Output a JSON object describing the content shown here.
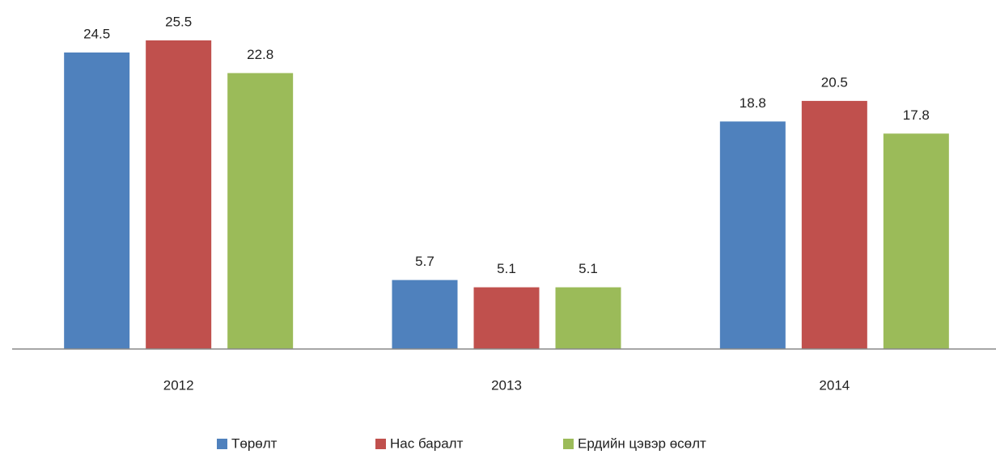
{
  "chart_data": {
    "type": "bar",
    "categories": [
      "2012",
      "2013",
      "2014"
    ],
    "series": [
      {
        "name": "Төрөлт",
        "color": "#4f81bd",
        "values": [
          24.5,
          5.7,
          18.8
        ]
      },
      {
        "name": "Нас баралт",
        "color": "#c0504d",
        "values": [
          25.5,
          5.1,
          20.5
        ]
      },
      {
        "name": "Ердийн цэвэр өсөлт",
        "color": "#9bbb59",
        "values": [
          22.8,
          5.1,
          17.8
        ]
      }
    ]
  }
}
